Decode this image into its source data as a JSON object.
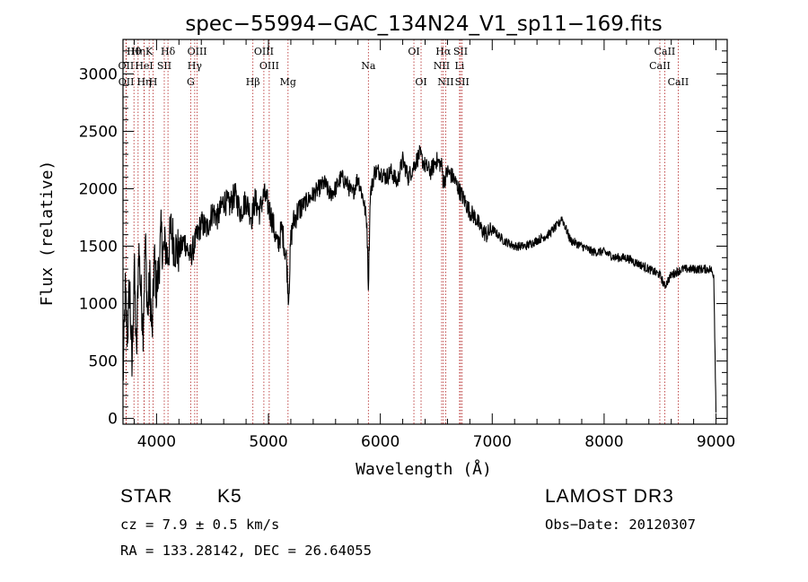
{
  "chart_data": {
    "type": "line",
    "title": "spec−55994−GAC_134N24_V1_sp11−169.fits",
    "xlabel": "Wavelength (Å)",
    "ylabel": "Flux (relative)",
    "xlim": [
      3700,
      9100
    ],
    "ylim": [
      -50,
      3300
    ],
    "xticks": [
      4000,
      5000,
      6000,
      7000,
      8000,
      9000
    ],
    "yticks": [
      0,
      500,
      1000,
      1500,
      2000,
      2500,
      3000
    ],
    "series": [
      {
        "name": "spectrum",
        "x": [
          3700,
          3720,
          3740,
          3760,
          3780,
          3800,
          3820,
          3840,
          3860,
          3880,
          3900,
          3920,
          3940,
          3960,
          3980,
          4000,
          4020,
          4040,
          4060,
          4080,
          4100,
          4130,
          4160,
          4200,
          4250,
          4300,
          4350,
          4400,
          4450,
          4500,
          4550,
          4600,
          4650,
          4700,
          4750,
          4800,
          4850,
          4880,
          4920,
          4960,
          5000,
          5040,
          5080,
          5120,
          5160,
          5180,
          5200,
          5220,
          5260,
          5300,
          5350,
          5400,
          5450,
          5500,
          5550,
          5600,
          5650,
          5700,
          5750,
          5800,
          5850,
          5880,
          5893,
          5910,
          5950,
          6000,
          6050,
          6100,
          6150,
          6200,
          6250,
          6300,
          6350,
          6400,
          6450,
          6500,
          6550,
          6563,
          6600,
          6650,
          6700,
          6750,
          6800,
          6850,
          6900,
          6950,
          7000,
          7100,
          7200,
          7300,
          7400,
          7500,
          7600,
          7620,
          7700,
          7800,
          7900,
          8000,
          8100,
          8200,
          8300,
          8400,
          8500,
          8540,
          8600,
          8700,
          8800,
          8900,
          8950,
          8980,
          9000
        ],
        "values": [
          300,
          1100,
          700,
          1200,
          400,
          1350,
          500,
          1500,
          1100,
          800,
          1550,
          900,
          1200,
          700,
          1400,
          1100,
          1300,
          1600,
          1450,
          1500,
          1400,
          1650,
          1500,
          1450,
          1550,
          1400,
          1550,
          1700,
          1650,
          1800,
          1750,
          1900,
          1850,
          1950,
          1800,
          1900,
          1750,
          1900,
          1800,
          1950,
          1850,
          1700,
          1500,
          1650,
          1400,
          1050,
          1550,
          1700,
          1800,
          1850,
          1900,
          1950,
          2000,
          2050,
          1950,
          2000,
          2100,
          2050,
          1950,
          2100,
          1900,
          1700,
          1150,
          1950,
          2150,
          2150,
          2100,
          2150,
          2050,
          2250,
          2100,
          2200,
          2300,
          2200,
          2150,
          2250,
          2200,
          2050,
          2150,
          2100,
          2000,
          1900,
          1800,
          1750,
          1650,
          1600,
          1650,
          1550,
          1500,
          1500,
          1550,
          1600,
          1700,
          1750,
          1550,
          1500,
          1450,
          1450,
          1400,
          1400,
          1350,
          1300,
          1250,
          1150,
          1250,
          1300,
          1300,
          1300,
          1300,
          1250,
          50
        ]
      }
    ],
    "lines": [
      {
        "label": "Hθ",
        "wl": 3798,
        "row": 1
      },
      {
        "label": "OII",
        "wl": 3727,
        "row": 2
      },
      {
        "label": "OII",
        "wl": 3729,
        "row": 3
      },
      {
        "label": "Hη",
        "wl": 3835,
        "row": 1
      },
      {
        "label": "HeI",
        "wl": 3889,
        "row": 2
      },
      {
        "label": "Hη",
        "wl": 3889,
        "row": 3
      },
      {
        "label": "K",
        "wl": 3934,
        "row": 1
      },
      {
        "label": "SII",
        "wl": 4069,
        "row": 2
      },
      {
        "label": "H",
        "wl": 3969,
        "row": 3
      },
      {
        "label": "Hδ",
        "wl": 4102,
        "row": 1
      },
      {
        "label": "OIII",
        "wl": 4363,
        "row": 1
      },
      {
        "label": "Hγ",
        "wl": 4341,
        "row": 2
      },
      {
        "label": "G",
        "wl": 4305,
        "row": 3
      },
      {
        "label": "OIII",
        "wl": 4959,
        "row": 1
      },
      {
        "label": "OIII",
        "wl": 5007,
        "row": 2
      },
      {
        "label": "Hβ",
        "wl": 4861,
        "row": 3
      },
      {
        "label": "Mg",
        "wl": 5175,
        "row": 3
      },
      {
        "label": "Na",
        "wl": 5893,
        "row": 2
      },
      {
        "label": "OI",
        "wl": 6300,
        "row": 1
      },
      {
        "label": "OI",
        "wl": 6364,
        "row": 3
      },
      {
        "label": "Hα",
        "wl": 6563,
        "row": 1
      },
      {
        "label": "NII",
        "wl": 6548,
        "row": 2
      },
      {
        "label": "NII",
        "wl": 6584,
        "row": 3
      },
      {
        "label": "SII",
        "wl": 6717,
        "row": 1
      },
      {
        "label": "Li",
        "wl": 6708,
        "row": 2
      },
      {
        "label": "SII",
        "wl": 6731,
        "row": 3
      },
      {
        "label": "CaII",
        "wl": 8542,
        "row": 1
      },
      {
        "label": "CaII",
        "wl": 8498,
        "row": 2
      },
      {
        "label": "CaII",
        "wl": 8662,
        "row": 3
      }
    ],
    "line_color": "#b22222",
    "grid": false,
    "legend": "none"
  },
  "info": {
    "class_label": "STAR",
    "subclass": "K5",
    "survey": "LAMOST DR3",
    "cz": "cz = 7.9 ± 0.5 km/s",
    "obs_date": "Obs−Date: 20120307",
    "coords": "RA = 133.28142, DEC =  26.64055"
  }
}
